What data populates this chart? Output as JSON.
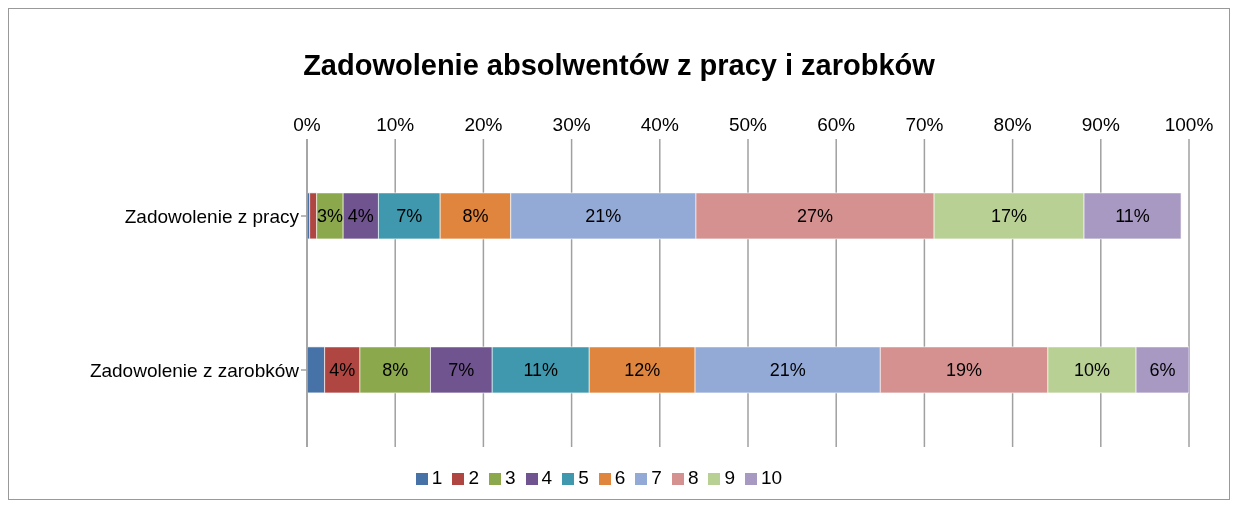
{
  "chart_data": {
    "type": "bar",
    "title": "Zadowolenie absolwentów z pracy i zarobków",
    "orientation": "horizontal",
    "stacked": true,
    "categories": [
      "Zadowolenie z pracy",
      "Zadowolenie z zarobków"
    ],
    "xlim": [
      0,
      100
    ],
    "xticks": [
      {
        "value": 0,
        "label": "0%"
      },
      {
        "value": 10,
        "label": "10%"
      },
      {
        "value": 20,
        "label": "20%"
      },
      {
        "value": 30,
        "label": "30%"
      },
      {
        "value": 40,
        "label": "40%"
      },
      {
        "value": 50,
        "label": "50%"
      },
      {
        "value": 60,
        "label": "60%"
      },
      {
        "value": 70,
        "label": "70%"
      },
      {
        "value": 80,
        "label": "80%"
      },
      {
        "value": 90,
        "label": "90%"
      },
      {
        "value": 100,
        "label": "100%"
      }
    ],
    "grid": "x",
    "legend": "bottom",
    "series": [
      {
        "name": "1",
        "color": "#4672a8",
        "values": [
          0.3,
          2
        ],
        "value_labels": [
          null,
          null
        ]
      },
      {
        "name": "2",
        "color": "#b04642",
        "values": [
          0.8,
          4
        ],
        "value_labels": [
          null,
          "4%"
        ]
      },
      {
        "name": "3",
        "color": "#8ba84c",
        "values": [
          3,
          8
        ],
        "value_labels": [
          "3%",
          "8%"
        ]
      },
      {
        "name": "4",
        "color": "#70548f",
        "values": [
          4,
          7
        ],
        "value_labels": [
          "4%",
          "7%"
        ]
      },
      {
        "name": "5",
        "color": "#3f98ad",
        "values": [
          7,
          11
        ],
        "value_labels": [
          "7%",
          "11%"
        ]
      },
      {
        "name": "6",
        "color": "#e0853e",
        "values": [
          8,
          12
        ],
        "value_labels": [
          "8%",
          "12%"
        ]
      },
      {
        "name": "7",
        "color": "#93a9d6",
        "values": [
          21,
          21
        ],
        "value_labels": [
          "21%",
          "21%"
        ]
      },
      {
        "name": "8",
        "color": "#d49190",
        "values": [
          27,
          19
        ],
        "value_labels": [
          "27%",
          "19%"
        ]
      },
      {
        "name": "9",
        "color": "#b9d095",
        "values": [
          17,
          10
        ],
        "value_labels": [
          "17%",
          "10%"
        ]
      },
      {
        "name": "10",
        "color": "#a899c2",
        "values": [
          11,
          6
        ],
        "value_labels": [
          "11%",
          "6%"
        ]
      }
    ]
  }
}
